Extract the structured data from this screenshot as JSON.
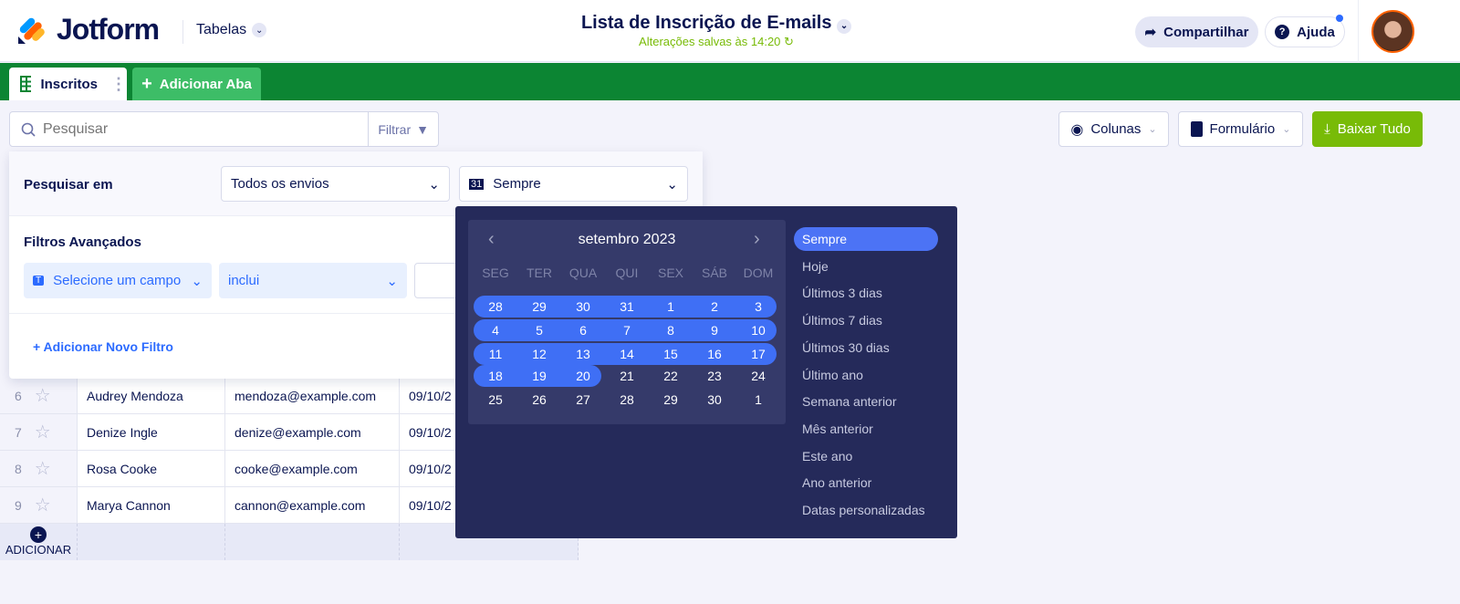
{
  "header": {
    "logo": "Jotform",
    "product": "Tabelas",
    "title": "Lista de Inscrição de E-mails",
    "saved_status": "Alterações salvas às 14:20",
    "share": "Compartilhar",
    "help": "Ajuda"
  },
  "tabs": {
    "active": "Inscritos",
    "add": "Adicionar Aba"
  },
  "toolbar": {
    "search_placeholder": "Pesquisar",
    "filter": "Filtrar",
    "columns": "Colunas",
    "form": "Formulário",
    "download": "Baixar Tudo"
  },
  "filter_panel": {
    "search_in_label": "Pesquisar em",
    "scope": "Todos os envios",
    "date_range": "Sempre",
    "advanced_label": "Filtros Avançados",
    "field_placeholder": "Selecione um campo",
    "operator": "inclui",
    "add_filter": "Adicionar Novo Filtro"
  },
  "calendar": {
    "month": "setembro 2023",
    "weekdays": [
      "SEG",
      "TER",
      "QUA",
      "QUI",
      "SEX",
      "SÁB",
      "DOM"
    ],
    "weeks": [
      [
        "28",
        "29",
        "30",
        "31",
        "1",
        "2",
        "3"
      ],
      [
        "4",
        "5",
        "6",
        "7",
        "8",
        "9",
        "10"
      ],
      [
        "11",
        "12",
        "13",
        "14",
        "15",
        "16",
        "17"
      ],
      [
        "18",
        "19",
        "20",
        "21",
        "22",
        "23",
        "24"
      ],
      [
        "25",
        "26",
        "27",
        "28",
        "29",
        "30",
        "1"
      ]
    ],
    "highlighted_through": "20",
    "presets": [
      "Sempre",
      "Hoje",
      "Últimos 3 dias",
      "Últimos 7 dias",
      "Últimos 30 dias",
      "Último ano",
      "Semana anterior",
      "Mês anterior",
      "Este ano",
      "Ano anterior",
      "Datas personalizadas"
    ],
    "selected_preset": "Sempre"
  },
  "rows": [
    {
      "n": "6",
      "name": "Audrey Mendoza",
      "email": "mendoza@example.com",
      "date": "09/10/2"
    },
    {
      "n": "7",
      "name": "Denize Ingle",
      "email": "denize@example.com",
      "date": "09/10/2"
    },
    {
      "n": "8",
      "name": "Rosa Cooke",
      "email": "cooke@example.com",
      "date": "09/10/2"
    },
    {
      "n": "9",
      "name": "Marya Cannon",
      "email": "cannon@example.com",
      "date": "09/10/2"
    }
  ],
  "add_row": "ADICIONAR",
  "colors": {
    "green_bar": "#0c8533",
    "accent": "#2c6bff",
    "download": "#78bb07",
    "calendar_bg": "#252a5a"
  }
}
